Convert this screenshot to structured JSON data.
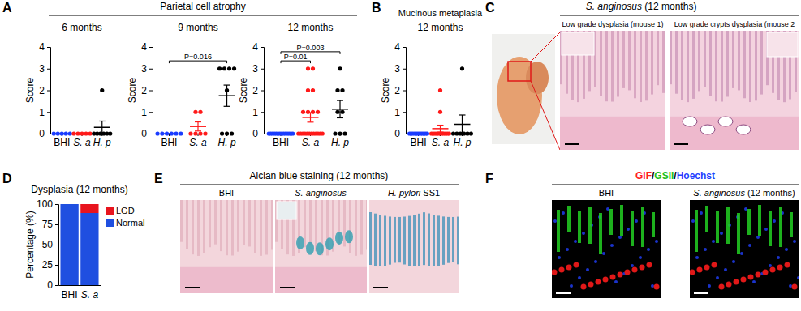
{
  "panels": [
    {
      "letter": "A",
      "title": "Parietal cell atrophy"
    },
    {
      "letter": "B"
    },
    {
      "letter": "C",
      "title": "S. anginosus (12 months)",
      "captions": [
        "Low grade dysplasia (mouse 1)",
        "Low grade crypts dysplasia (mouse 2"
      ]
    },
    {
      "letter": "D"
    },
    {
      "letter": "E",
      "title": "Alcian blue staining (12 months)",
      "captions": [
        "BHI",
        "S. anginosus",
        "H. pylori SS1"
      ]
    },
    {
      "letter": "F",
      "title_parts": [
        {
          "text": "GIF",
          "color": "#ff2020"
        },
        {
          "text": "/",
          "color": "#000000"
        },
        {
          "text": "GSII",
          "color": "#22c022"
        },
        {
          "text": "/",
          "color": "#000000"
        },
        {
          "text": "Hoechst",
          "color": "#1f3fff"
        }
      ],
      "captions": [
        "BHI",
        "S. anginosus (12 months)"
      ]
    }
  ],
  "chart_data": [
    {
      "type": "dot",
      "title": "6 months",
      "ylabel": "Score",
      "categories": [
        "BHI",
        "S. a",
        "H. p"
      ],
      "colors": [
        "#1a3cff",
        "#ff1a1a",
        "#000000"
      ],
      "values": [
        [
          0,
          0,
          0,
          0,
          0
        ],
        [
          0,
          0,
          0,
          0,
          0
        ],
        [
          2,
          0,
          0,
          0,
          0,
          0,
          0
        ]
      ],
      "means": [
        0,
        0,
        0.29
      ],
      "errors": [
        0,
        0,
        0.29
      ],
      "ylim": [
        0,
        4
      ],
      "yticks": [
        0,
        1,
        2,
        3,
        4
      ],
      "annotations": []
    },
    {
      "type": "dot",
      "title": "9 months",
      "ylabel": "Score",
      "categories": [
        "BHI",
        "S. a",
        "H. p"
      ],
      "colors": [
        "#1a3cff",
        "#ff1a1a",
        "#000000"
      ],
      "values": [
        [
          0,
          0,
          0,
          0,
          0,
          0
        ],
        [
          1,
          1,
          0,
          0,
          0,
          0
        ],
        [
          3,
          3,
          3,
          3,
          2,
          0,
          0,
          0
        ]
      ],
      "means": [
        0,
        0.33,
        1.75
      ],
      "errors": [
        0,
        0.21,
        0.49
      ],
      "ylim": [
        0,
        4
      ],
      "yticks": [
        0,
        1,
        2,
        3,
        4
      ],
      "annotations": [
        {
          "text": "P=0.016",
          "from": "BHI",
          "to": "H. p"
        }
      ]
    },
    {
      "type": "dot",
      "title": "12 months",
      "ylabel": "Score",
      "categories": [
        "BHI",
        "S. a",
        "H. p"
      ],
      "colors": [
        "#1a3cff",
        "#ff1a1a",
        "#000000"
      ],
      "values": [
        [
          0,
          0,
          0,
          0,
          0,
          0,
          0,
          0,
          0,
          0,
          0,
          0,
          0,
          0
        ],
        [
          3,
          3,
          2,
          2,
          1,
          1,
          1,
          1,
          0,
          0,
          0,
          0,
          0,
          0,
          0,
          0,
          0,
          0,
          0,
          0
        ],
        [
          3,
          2,
          2,
          1,
          1,
          0,
          0,
          0
        ]
      ],
      "means": [
        0,
        0.75,
        1.13
      ],
      "errors": [
        0,
        0.22,
        0.4
      ],
      "ylim": [
        0,
        4
      ],
      "yticks": [
        0,
        1,
        2,
        3,
        4
      ],
      "annotations": [
        {
          "text": "P=0.01",
          "from": "BHI",
          "to": "S. a"
        },
        {
          "text": "P=0.003",
          "from": "BHI",
          "to": "H. p"
        }
      ]
    },
    {
      "type": "dot",
      "title": "Mucinous metaplasia",
      "subtitle": "12 months",
      "ylabel": "Score",
      "categories": [
        "BHI",
        "S. a",
        "H. p"
      ],
      "colors": [
        "#1a3cff",
        "#ff1a1a",
        "#000000"
      ],
      "values": [
        [
          0,
          0,
          0,
          0,
          0,
          0,
          0,
          0,
          0,
          0,
          0,
          0
        ],
        [
          2,
          1,
          0,
          0,
          0,
          0,
          0,
          0,
          0,
          0,
          0,
          0,
          0
        ],
        [
          3,
          0,
          0,
          0,
          0,
          0,
          0
        ]
      ],
      "means": [
        0,
        0.23,
        0.43
      ],
      "errors": [
        0,
        0.16,
        0.43
      ],
      "ylim": [
        0,
        4
      ],
      "yticks": [
        0,
        1,
        2,
        3,
        4
      ],
      "annotations": []
    },
    {
      "type": "bar",
      "title": "Dysplasia (12 months)",
      "ylabel": "Percentage (%)",
      "categories": [
        "BHI",
        "S. a"
      ],
      "series": [
        {
          "name": "Normal",
          "color": "#1f4fe0",
          "values": [
            100,
            89
          ]
        },
        {
          "name": "LGD",
          "color": "#e8141e",
          "values": [
            0,
            11
          ]
        }
      ],
      "stacked": true,
      "legend": "right",
      "ylim": [
        0,
        100
      ],
      "yticks": [
        0,
        25,
        50,
        75,
        100
      ]
    }
  ]
}
